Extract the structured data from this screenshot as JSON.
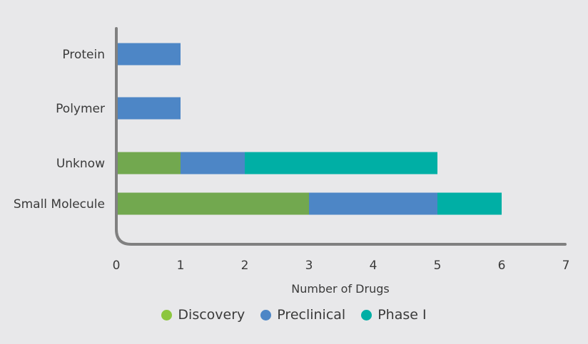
{
  "chart_data": {
    "type": "bar",
    "orientation": "horizontal",
    "stacked": true,
    "categories": [
      "Protein",
      "Polymer",
      "Unknow",
      "Small Molecule"
    ],
    "series": [
      {
        "name": "Discovery",
        "values": [
          0,
          0,
          1,
          3
        ],
        "color": "#72a84f"
      },
      {
        "name": "Preclinical",
        "values": [
          1,
          1,
          1,
          2
        ],
        "color": "#4d86c6"
      },
      {
        "name": "Phase I",
        "values": [
          0,
          0,
          3,
          1
        ],
        "color": "#00afa5"
      }
    ],
    "xlabel": "Number of Drugs",
    "ylabel": "",
    "xlim": [
      0,
      7
    ],
    "xticks": [
      "0",
      "1",
      "2",
      "3",
      "4",
      "5",
      "6",
      "7"
    ],
    "grid": false,
    "legend_position": "bottom-center",
    "legend_dot_colors": [
      "#8cc63f",
      "#4d86c6",
      "#00afa5"
    ]
  }
}
